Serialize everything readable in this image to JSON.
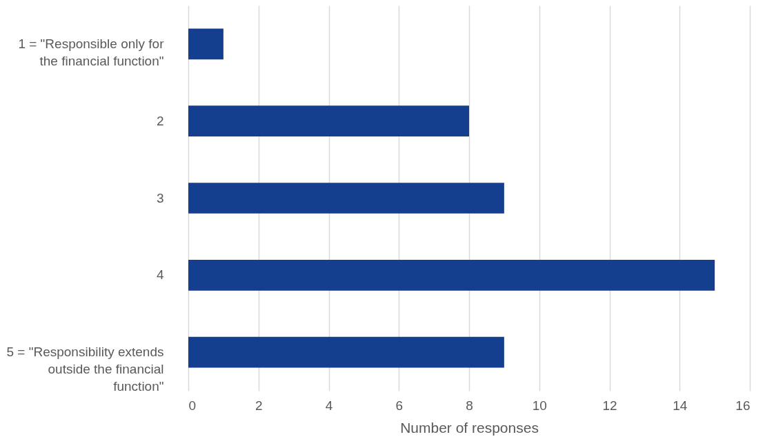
{
  "chart_data": {
    "type": "bar",
    "orientation": "horizontal",
    "xlabel": "Number of responses",
    "categories": [
      "1 = \"Responsible only for the financial function\"",
      "2",
      "3",
      "4",
      "5 = \"Responsibility extends outside the financial function\""
    ],
    "values": [
      1,
      8,
      9,
      15,
      9
    ],
    "color": "#143f8f",
    "xlim": [
      0,
      16
    ],
    "xticks": [
      0,
      2,
      4,
      6,
      8,
      10,
      12,
      14,
      16
    ],
    "grid": "x"
  }
}
